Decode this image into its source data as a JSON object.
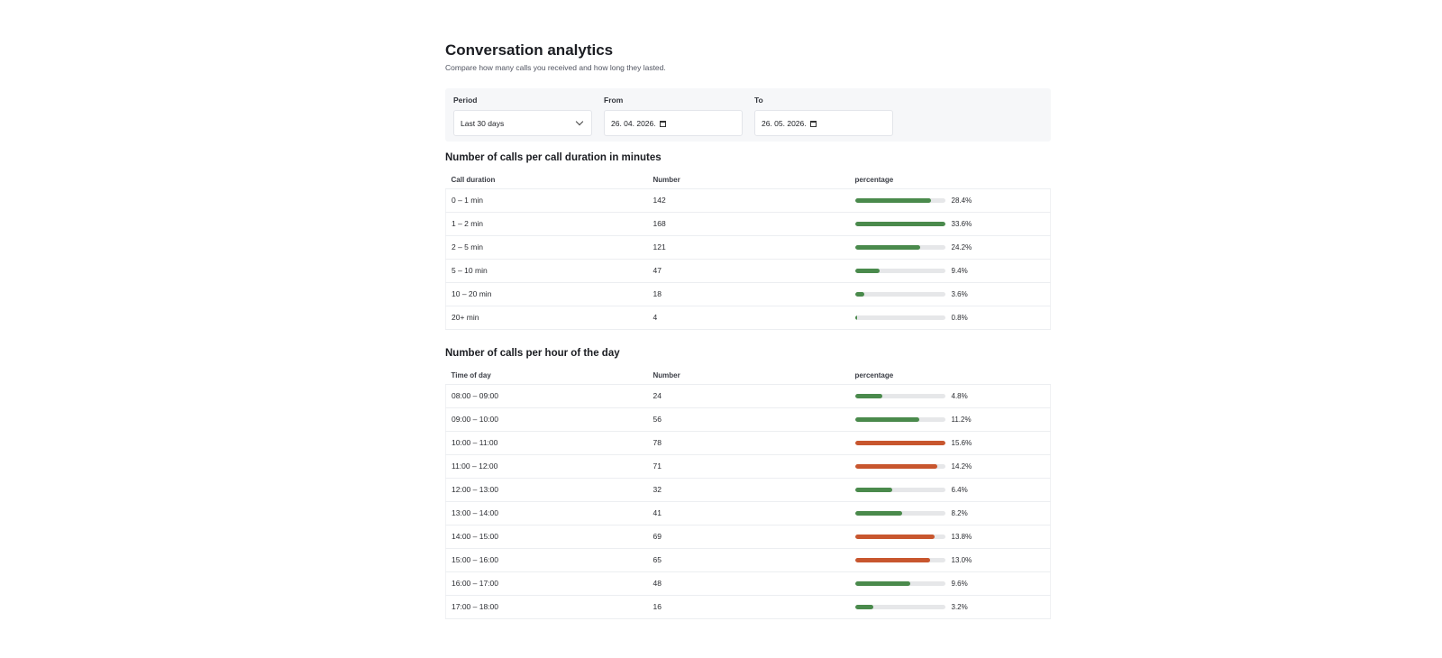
{
  "header": {
    "title": "Conversation analytics",
    "subtitle": "Compare how many calls you received and how long they lasted."
  },
  "filters": {
    "period": {
      "label": "Period",
      "value": "Last 30 days"
    },
    "from": {
      "label": "From",
      "value": "26. 04. 2026."
    },
    "to": {
      "label": "To",
      "value": "26. 05. 2026."
    }
  },
  "colors": {
    "normal": "#4a8a4c",
    "peak": "#c8562e",
    "track": "#e6e7e9"
  },
  "duration_table": {
    "title": "Number of calls per call duration in minutes",
    "columns": [
      "Call duration",
      "Number",
      "percentage"
    ],
    "rows": [
      {
        "label": "0 – 1 min",
        "count": "142",
        "percent": 28.4,
        "percent_text": "28.4%",
        "peak": false
      },
      {
        "label": "1 – 2 min",
        "count": "168",
        "percent": 33.6,
        "percent_text": "33.6%",
        "peak": false
      },
      {
        "label": "2 – 5 min",
        "count": "121",
        "percent": 24.2,
        "percent_text": "24.2%",
        "peak": false
      },
      {
        "label": "5 – 10 min",
        "count": "47",
        "percent": 9.4,
        "percent_text": "9.4%",
        "peak": false
      },
      {
        "label": "10 – 20 min",
        "count": "18",
        "percent": 3.6,
        "percent_text": "3.6%",
        "peak": false
      },
      {
        "label": "20+ min",
        "count": "4",
        "percent": 0.8,
        "percent_text": "0.8%",
        "peak": false
      }
    ]
  },
  "hour_table": {
    "title": "Number of calls per hour of the day",
    "columns": [
      "Time of day",
      "Number",
      "percentage"
    ],
    "rows": [
      {
        "label": "08:00 – 09:00",
        "count": "24",
        "percent": 4.8,
        "percent_text": "4.8%",
        "peak": false
      },
      {
        "label": "09:00 – 10:00",
        "count": "56",
        "percent": 11.2,
        "percent_text": "11.2%",
        "peak": false
      },
      {
        "label": "10:00 – 11:00",
        "count": "78",
        "percent": 15.6,
        "percent_text": "15.6%",
        "peak": true
      },
      {
        "label": "11:00 – 12:00",
        "count": "71",
        "percent": 14.2,
        "percent_text": "14.2%",
        "peak": true
      },
      {
        "label": "12:00 – 13:00",
        "count": "32",
        "percent": 6.4,
        "percent_text": "6.4%",
        "peak": false
      },
      {
        "label": "13:00 – 14:00",
        "count": "41",
        "percent": 8.2,
        "percent_text": "8.2%",
        "peak": false
      },
      {
        "label": "14:00 – 15:00",
        "count": "69",
        "percent": 13.8,
        "percent_text": "13.8%",
        "peak": true
      },
      {
        "label": "15:00 – 16:00",
        "count": "65",
        "percent": 13.0,
        "percent_text": "13.0%",
        "peak": true
      },
      {
        "label": "16:00 – 17:00",
        "count": "48",
        "percent": 9.6,
        "percent_text": "9.6%",
        "peak": false
      },
      {
        "label": "17:00 – 18:00",
        "count": "16",
        "percent": 3.2,
        "percent_text": "3.2%",
        "peak": false
      }
    ]
  }
}
